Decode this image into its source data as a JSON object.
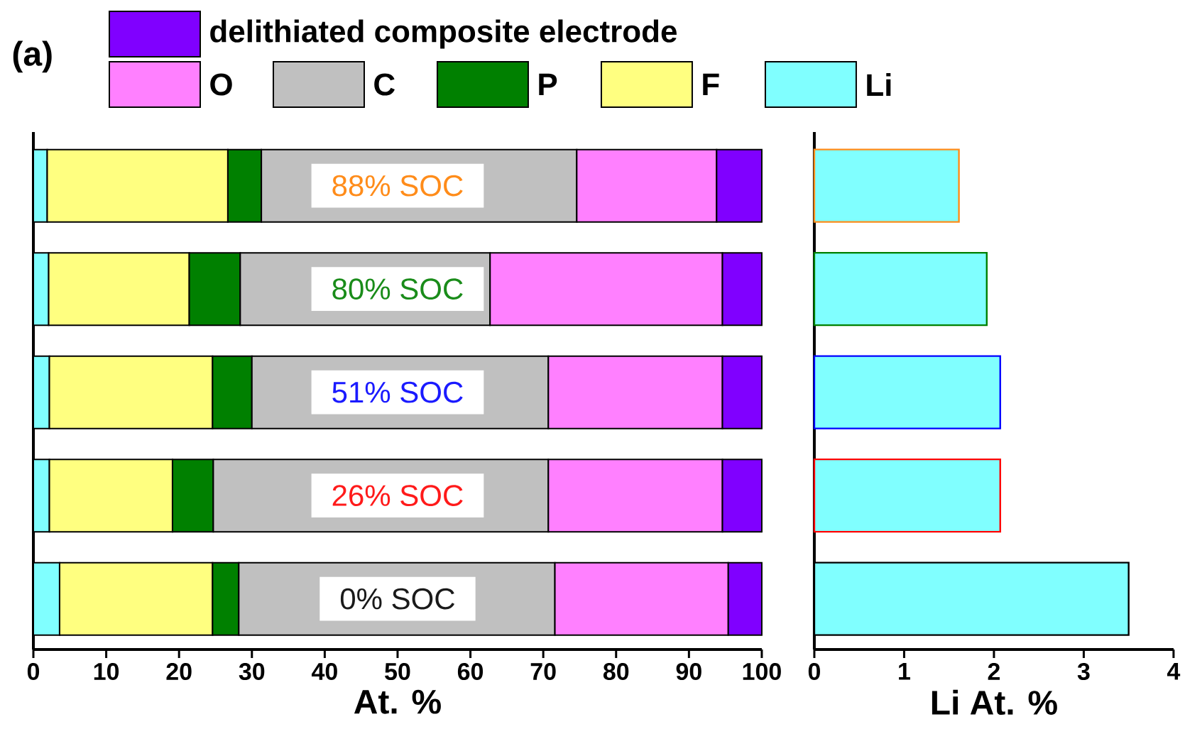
{
  "chart_data": [
    {
      "type": "bar",
      "orientation": "horizontal",
      "stacked": true,
      "xlabel": "At. %",
      "annotations": [
        "(a)"
      ],
      "legend": "top",
      "categories": [
        "88% SOC",
        "80% SOC",
        "51% SOC",
        "26% SOC",
        "0% SOC"
      ],
      "xlim": [
        0,
        100
      ],
      "xticks": [
        0,
        10,
        20,
        30,
        40,
        50,
        60,
        70,
        80,
        90,
        100
      ],
      "series": [
        {
          "name": "Li",
          "color": "#80ffff",
          "values": [
            1.9,
            2.1,
            2.2,
            2.2,
            3.6
          ]
        },
        {
          "name": "F",
          "color": "#ffff80",
          "values": [
            24.8,
            19.3,
            22.4,
            16.9,
            21.0
          ]
        },
        {
          "name": "P",
          "color": "#008000",
          "values": [
            4.6,
            7.0,
            5.4,
            5.6,
            3.6
          ]
        },
        {
          "name": "C",
          "color": "#c0c0c0",
          "values": [
            43.3,
            34.3,
            40.7,
            46.0,
            43.4
          ]
        },
        {
          "name": "O",
          "color": "#ff80ff",
          "values": [
            19.2,
            31.9,
            23.9,
            23.9,
            23.8
          ]
        },
        {
          "name": "delithiated  composite electrode",
          "color": "#8000ff",
          "values": [
            6.2,
            5.4,
            5.4,
            5.4,
            4.6
          ]
        }
      ]
    },
    {
      "type": "bar",
      "orientation": "horizontal",
      "xlabel": "Li At. %",
      "categories": [
        null,
        null,
        null,
        null,
        null
      ],
      "xlim": [
        0,
        4
      ],
      "xticks": [
        0,
        1,
        2,
        3,
        4
      ],
      "color": "#80ffff",
      "values": [
        1.61,
        1.92,
        2.07,
        2.07,
        3.5
      ]
    }
  ]
}
